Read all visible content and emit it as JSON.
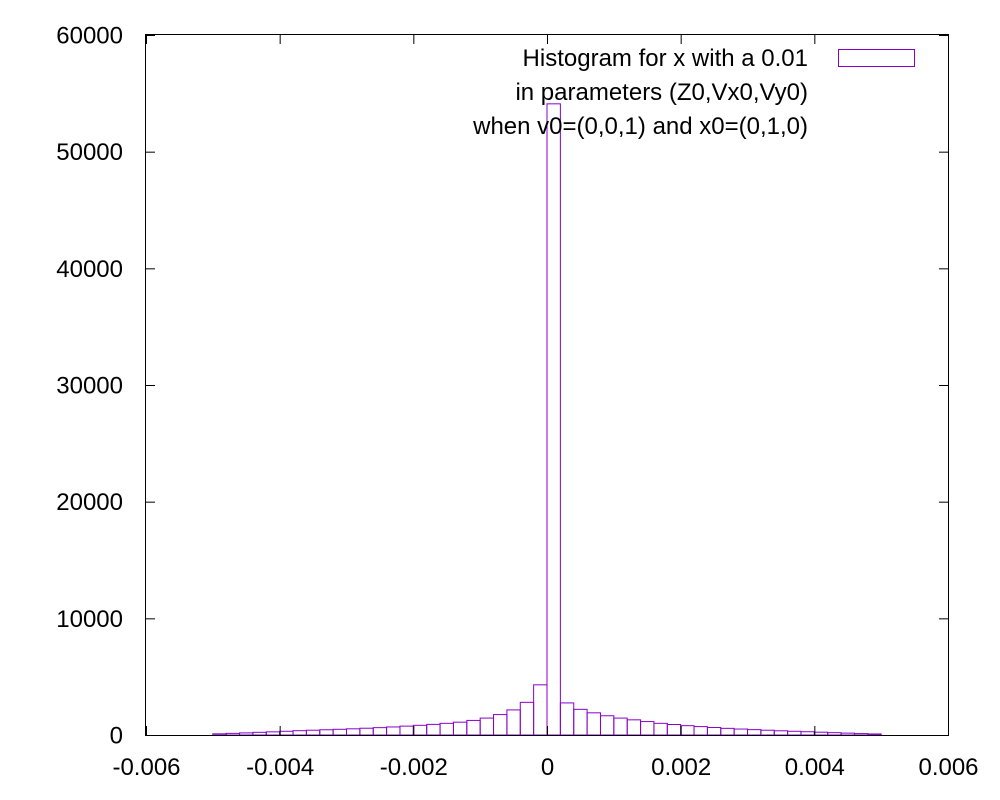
{
  "chart_data": {
    "type": "bar",
    "title": "",
    "xlabel": "",
    "ylabel": "",
    "xlim": [
      -0.006,
      0.006
    ],
    "ylim": [
      0,
      60000
    ],
    "grid": false,
    "legend_position": "top-right",
    "bar_color": "#8800cc",
    "bin_width": 0.0002,
    "x_ticks": [
      {
        "value": -0.006,
        "label": "-0.006"
      },
      {
        "value": -0.004,
        "label": "-0.004"
      },
      {
        "value": -0.002,
        "label": "-0.002"
      },
      {
        "value": 0,
        "label": "0"
      },
      {
        "value": 0.002,
        "label": "0.002"
      },
      {
        "value": 0.004,
        "label": "0.004"
      },
      {
        "value": 0.006,
        "label": "0.006"
      }
    ],
    "y_ticks": [
      {
        "value": 0,
        "label": "0"
      },
      {
        "value": 10000,
        "label": "10000"
      },
      {
        "value": 20000,
        "label": "20000"
      },
      {
        "value": 30000,
        "label": "30000"
      },
      {
        "value": 40000,
        "label": "40000"
      },
      {
        "value": 50000,
        "label": "50000"
      },
      {
        "value": 60000,
        "label": "60000"
      }
    ],
    "series": [
      {
        "name": "Histogram for x with a 0.01 in parameters (Z0,Vx0,Vy0) when v0=(0,0,1) and x0=(0,1,0)",
        "legend_lines": [
          "Histogram for x with a 0.01",
          "in parameters (Z0,Vx0,Vy0)",
          "when v0=(0,0,1) and x0=(0,1,0)"
        ],
        "bins": [
          {
            "x": -0.0049,
            "y": 100
          },
          {
            "x": -0.0047,
            "y": 140
          },
          {
            "x": -0.0045,
            "y": 180
          },
          {
            "x": -0.0043,
            "y": 230
          },
          {
            "x": -0.0041,
            "y": 270
          },
          {
            "x": -0.0039,
            "y": 320
          },
          {
            "x": -0.0037,
            "y": 370
          },
          {
            "x": -0.0035,
            "y": 410
          },
          {
            "x": -0.0033,
            "y": 450
          },
          {
            "x": -0.0031,
            "y": 490
          },
          {
            "x": -0.0029,
            "y": 530
          },
          {
            "x": -0.0027,
            "y": 580
          },
          {
            "x": -0.0025,
            "y": 630
          },
          {
            "x": -0.0023,
            "y": 690
          },
          {
            "x": -0.0021,
            "y": 760
          },
          {
            "x": -0.0019,
            "y": 830
          },
          {
            "x": -0.0017,
            "y": 910
          },
          {
            "x": -0.0015,
            "y": 1000
          },
          {
            "x": -0.0013,
            "y": 1100
          },
          {
            "x": -0.0011,
            "y": 1250
          },
          {
            "x": -0.0009,
            "y": 1450
          },
          {
            "x": -0.0007,
            "y": 1750
          },
          {
            "x": -0.0005,
            "y": 2150
          },
          {
            "x": -0.0003,
            "y": 2800
          },
          {
            "x": -0.0001,
            "y": 4300
          },
          {
            "x": 0.0001,
            "y": 54100
          },
          {
            "x": 0.0003,
            "y": 2750
          },
          {
            "x": 0.0005,
            "y": 2200
          },
          {
            "x": 0.0007,
            "y": 1900
          },
          {
            "x": 0.0009,
            "y": 1650
          },
          {
            "x": 0.0011,
            "y": 1450
          },
          {
            "x": 0.0013,
            "y": 1300
          },
          {
            "x": 0.0015,
            "y": 1150
          },
          {
            "x": 0.0017,
            "y": 1000
          },
          {
            "x": 0.0019,
            "y": 900
          },
          {
            "x": 0.0021,
            "y": 800
          },
          {
            "x": 0.0023,
            "y": 720
          },
          {
            "x": 0.0025,
            "y": 640
          },
          {
            "x": 0.0027,
            "y": 570
          },
          {
            "x": 0.0029,
            "y": 510
          },
          {
            "x": 0.0031,
            "y": 460
          },
          {
            "x": 0.0033,
            "y": 410
          },
          {
            "x": 0.0035,
            "y": 360
          },
          {
            "x": 0.0037,
            "y": 320
          },
          {
            "x": 0.0039,
            "y": 280
          },
          {
            "x": 0.0041,
            "y": 240
          },
          {
            "x": 0.0043,
            "y": 200
          },
          {
            "x": 0.0045,
            "y": 160
          },
          {
            "x": 0.0047,
            "y": 120
          },
          {
            "x": 0.0049,
            "y": 90
          }
        ]
      }
    ]
  }
}
